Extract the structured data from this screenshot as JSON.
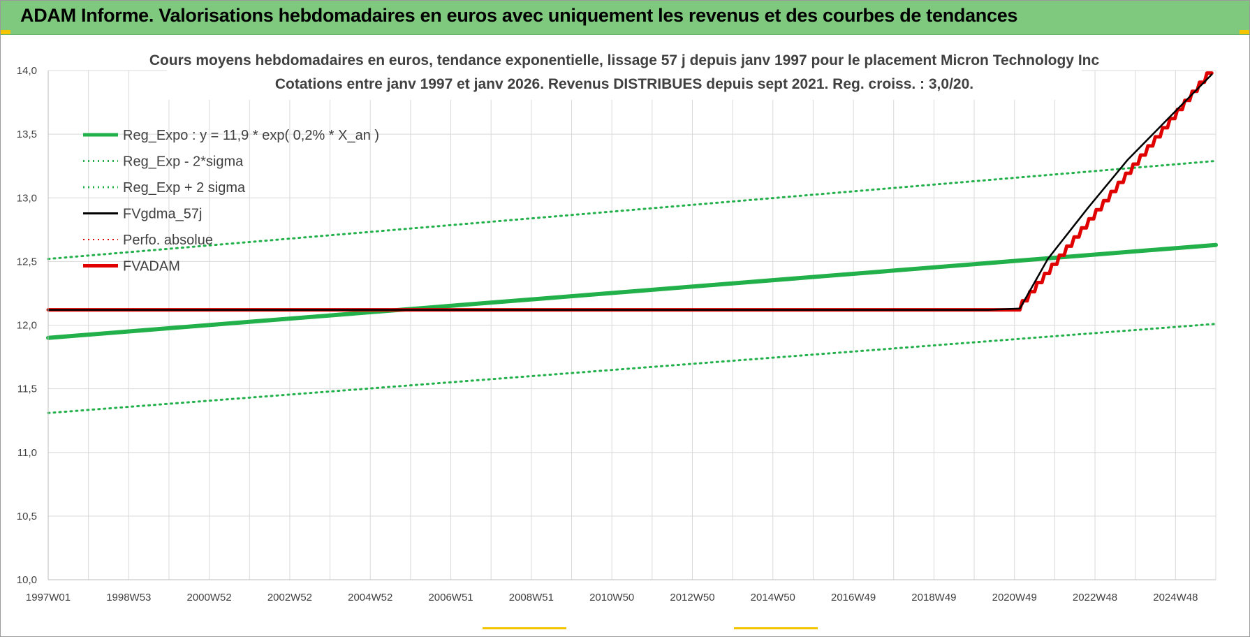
{
  "banner": {
    "title": "ADAM Informe. Valorisations hebdomadaires en euros avec uniquement les revenus et des courbes de tendances",
    "color": "#7fc97f"
  },
  "chart_data": {
    "type": "line",
    "title": "Cours moyens hebdomadaires en euros, tendance exponentielle, lissage 57 j depuis janv 1997 pour le placement Micron Technology Inc",
    "subtitle": "Cotations entre janv 1997 et janv 2026. Revenus DISTRIBUES depuis sept 2021. Reg. croiss. : 3,0/20.",
    "xlabel": "",
    "ylabel": "",
    "x_ticks": [
      "1997W01",
      "1998W53",
      "2000W52",
      "2002W52",
      "2004W52",
      "2006W51",
      "2008W51",
      "2010W50",
      "2012W50",
      "2014W50",
      "2016W49",
      "2018W49",
      "2020W49",
      "2022W48",
      "2024W48"
    ],
    "x_range_years": [
      1997.0,
      2026.2
    ],
    "ylim": [
      10.0,
      14.0
    ],
    "y_ticks": [
      "10,0",
      "10,5",
      "11,0",
      "11,5",
      "12,0",
      "12,5",
      "13,0",
      "13,5",
      "14,0"
    ],
    "grid": true,
    "legend_position": "top-left",
    "series": [
      {
        "name": "Reg_Expo : y = 11,9 * exp( 0,2% *  X_an )",
        "color": "#22b04a",
        "style": "solid-thick",
        "x": [
          1997.0,
          2026.2
        ],
        "y": [
          11.9,
          12.63
        ]
      },
      {
        "name": "Reg_Exp - 2*sigma",
        "color": "#22b04a",
        "style": "dotted",
        "x": [
          1997.0,
          2026.2
        ],
        "y": [
          11.31,
          12.01
        ]
      },
      {
        "name": "Reg_Exp + 2 sigma",
        "color": "#22b04a",
        "style": "dotted",
        "x": [
          1997.0,
          2026.2
        ],
        "y": [
          12.52,
          13.29
        ]
      },
      {
        "name": "FVgdma_57j",
        "color": "#000000",
        "style": "solid",
        "x": [
          1997.0,
          2020.5,
          2021.3,
          2022.0,
          2023.0,
          2024.0,
          2025.0,
          2026.1
        ],
        "y": [
          12.12,
          12.12,
          12.13,
          12.52,
          12.92,
          13.3,
          13.62,
          13.97
        ]
      },
      {
        "name": "Perfo. absolue",
        "color": "#e00000",
        "style": "dotted",
        "x": [
          1997.0,
          2021.3,
          2022.0,
          2023.0,
          2024.0,
          2025.0,
          2026.1
        ],
        "y": [
          12.12,
          12.12,
          12.52,
          12.92,
          13.3,
          13.62,
          13.97
        ]
      },
      {
        "name": "FVADAM",
        "color": "#e00000",
        "style": "steps-thick",
        "x": [
          1997.0,
          2021.3,
          2026.1
        ],
        "y": [
          12.12,
          12.12,
          13.98
        ]
      }
    ]
  }
}
